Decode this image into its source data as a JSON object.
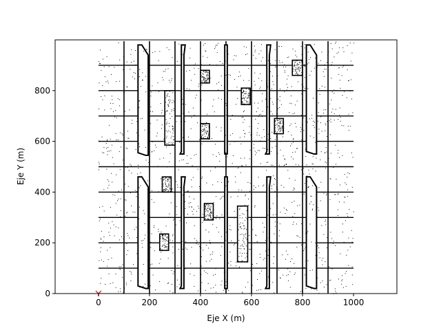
{
  "chart_data": {
    "type": "scatter",
    "title": "",
    "xlabel": "Eje X (m)",
    "ylabel": "Eje Y (m)",
    "xlim": [
      -170,
      1170
    ],
    "ylim": [
      0,
      1000
    ],
    "xticks": [
      0,
      200,
      400,
      600,
      800,
      1000
    ],
    "yticks": [
      0,
      200,
      400,
      600,
      800
    ],
    "grid": false,
    "origin_marker": {
      "x": 0,
      "y": 0,
      "symbol": "Y",
      "color": "#d62728"
    },
    "map": {
      "vertical_lines_x": [
        100,
        200,
        300,
        400,
        500,
        600,
        700,
        800,
        900
      ],
      "horizontal_rows_y": [
        100,
        200,
        300,
        400,
        500,
        600,
        700,
        800,
        900
      ],
      "road_gap_y": 500,
      "buildings": [
        {
          "x0": 260,
          "y0": 585,
          "x1": 300,
          "y1": 800
        },
        {
          "x0": 400,
          "y0": 830,
          "x1": 435,
          "y1": 880
        },
        {
          "x0": 400,
          "y0": 610,
          "x1": 435,
          "y1": 670
        },
        {
          "x0": 560,
          "y0": 745,
          "x1": 595,
          "y1": 810
        },
        {
          "x0": 690,
          "y0": 630,
          "x1": 725,
          "y1": 690
        },
        {
          "x0": 760,
          "y0": 860,
          "x1": 800,
          "y1": 920
        },
        {
          "x0": 250,
          "y0": 400,
          "x1": 285,
          "y1": 460
        },
        {
          "x0": 415,
          "y0": 290,
          "x1": 450,
          "y1": 355
        },
        {
          "x0": 545,
          "y0": 125,
          "x1": 585,
          "y1": 345
        },
        {
          "x0": 240,
          "y0": 170,
          "x1": 275,
          "y1": 235
        }
      ],
      "towers": [
        {
          "xa": 155,
          "xb": 170,
          "xc": 195,
          "xd": 185,
          "y0": 545,
          "y1": 980
        },
        {
          "xa": 325,
          "xb": 340,
          "xc": 335,
          "xd": 320,
          "y0": 550,
          "y1": 980
        },
        {
          "xa": 495,
          "xb": 505,
          "xc": 505,
          "xd": 495,
          "y0": 550,
          "y1": 980
        },
        {
          "xa": 660,
          "xb": 675,
          "xc": 670,
          "xd": 655,
          "y0": 550,
          "y1": 980
        },
        {
          "xa": 815,
          "xb": 830,
          "xc": 855,
          "xd": 845,
          "y0": 550,
          "y1": 980
        },
        {
          "xa": 155,
          "xb": 170,
          "xc": 195,
          "xd": 185,
          "y0": 20,
          "y1": 460
        },
        {
          "xa": 325,
          "xb": 340,
          "xc": 335,
          "xd": 320,
          "y0": 20,
          "y1": 460
        },
        {
          "xa": 495,
          "xb": 505,
          "xc": 505,
          "xd": 495,
          "y0": 20,
          "y1": 460
        },
        {
          "xa": 660,
          "xb": 675,
          "xc": 670,
          "xd": 655,
          "y0": 20,
          "y1": 460
        },
        {
          "xa": 815,
          "xb": 830,
          "xc": 855,
          "xd": 845,
          "y0": 20,
          "y1": 460
        }
      ]
    }
  }
}
